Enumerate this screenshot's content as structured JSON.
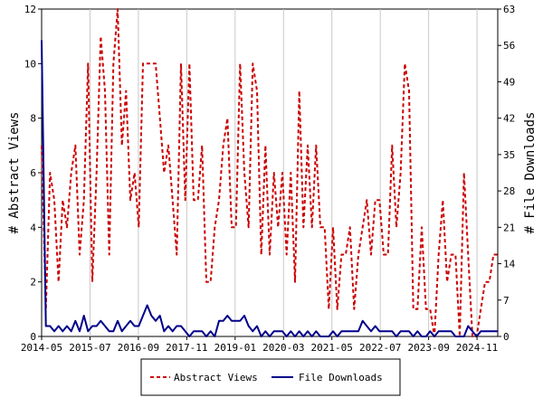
{
  "chart_data": {
    "type": "line",
    "x_ticks": [
      "2014-05",
      "2015-07",
      "2016-09",
      "2017-11",
      "2019-01",
      "2020-03",
      "2021-05",
      "2022-07",
      "2023-09",
      "2024-11"
    ],
    "x_range": [
      "2014-05",
      "2025-05"
    ],
    "y_left": {
      "label": "# Abstract Views",
      "ticks": [
        0,
        2,
        4,
        6,
        8,
        10,
        12
      ],
      "range": [
        0,
        12
      ]
    },
    "y_right": {
      "label": "# File Downloads",
      "ticks": [
        0,
        7,
        14,
        21,
        28,
        35,
        42,
        49,
        56,
        63
      ],
      "range": [
        0,
        63
      ]
    },
    "grid": "vertical",
    "legend_position": "bottom",
    "series": [
      {
        "name": "Abstract Views",
        "axis": "left",
        "color": "#cc0000",
        "style": "dashed",
        "values": [
          7,
          1,
          6,
          5,
          2,
          5,
          4,
          6,
          7,
          3,
          5,
          10,
          2,
          6,
          11,
          9,
          3,
          10,
          12,
          7,
          9,
          5,
          6,
          4,
          10,
          10,
          10,
          10,
          8,
          6,
          7,
          5,
          3,
          10,
          5,
          10,
          5,
          5,
          7,
          2,
          2,
          4,
          5,
          7,
          8,
          4,
          4,
          10,
          6,
          4,
          10,
          9,
          3,
          7,
          3,
          6,
          4,
          6,
          3,
          6,
          2,
          9,
          4,
          7,
          4,
          7,
          4,
          4,
          1,
          4,
          1,
          3,
          3,
          4,
          1,
          3,
          4,
          5,
          3,
          5,
          5,
          3,
          3,
          7,
          4,
          6,
          10,
          9,
          1,
          1,
          4,
          1,
          1,
          0,
          3,
          5,
          2,
          3,
          3,
          0,
          6,
          3,
          0,
          0,
          1,
          2,
          2,
          3,
          3
        ]
      },
      {
        "name": "File Downloads",
        "axis": "right",
        "color": "#00008b",
        "style": "solid",
        "values": [
          57,
          2,
          2,
          1,
          2,
          1,
          2,
          1,
          3,
          1,
          4,
          1,
          2,
          2,
          3,
          2,
          1,
          1,
          3,
          1,
          2,
          3,
          2,
          2,
          4,
          6,
          4,
          3,
          4,
          1,
          2,
          1,
          2,
          2,
          1,
          0,
          1,
          1,
          1,
          0,
          1,
          0,
          3,
          3,
          4,
          3,
          3,
          3,
          4,
          2,
          1,
          2,
          0,
          1,
          0,
          1,
          1,
          1,
          0,
          1,
          0,
          1,
          0,
          1,
          0,
          1,
          0,
          0,
          0,
          1,
          0,
          1,
          1,
          1,
          1,
          1,
          3,
          2,
          1,
          2,
          1,
          1,
          1,
          1,
          0,
          1,
          1,
          1,
          0,
          1,
          0,
          0,
          1,
          0,
          1,
          1,
          1,
          1,
          0,
          0,
          0,
          2,
          1,
          0,
          1,
          1,
          1,
          1,
          1
        ]
      }
    ]
  },
  "legend": {
    "items": [
      {
        "label": "Abstract Views",
        "color": "#cc0000",
        "style": "dashed"
      },
      {
        "label": "File Downloads",
        "color": "#00008b",
        "style": "solid"
      }
    ]
  }
}
